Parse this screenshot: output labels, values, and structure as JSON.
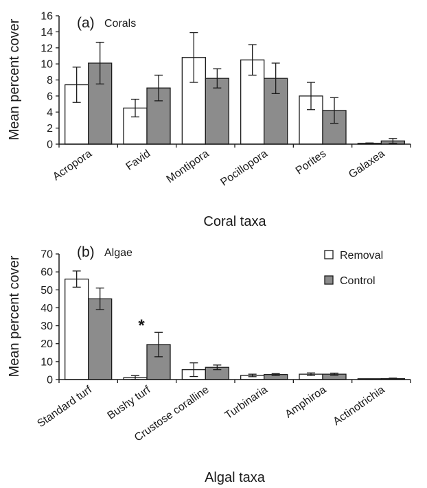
{
  "chart_data": [
    {
      "type": "bar",
      "panel_tag": "(a)",
      "panel_name": "Corals",
      "ylabel": "Mean percent cover",
      "xlabel": "Coral taxa",
      "ylim": [
        0,
        16
      ],
      "yticks": [
        0,
        2,
        4,
        6,
        8,
        10,
        12,
        14,
        16
      ],
      "categories": [
        "Acropora",
        "Favid",
        "Montipora",
        "Pocillopora",
        "Porites",
        "Galaxea"
      ],
      "series": [
        {
          "color": "#ffffff",
          "values": [
            7.4,
            4.5,
            10.8,
            10.5,
            6.0,
            0.1
          ],
          "errors": [
            2.2,
            1.1,
            3.1,
            1.9,
            1.7,
            0.05
          ]
        },
        {
          "color": "#8c8c8c",
          "values": [
            10.1,
            7.0,
            8.2,
            8.2,
            4.2,
            0.4
          ],
          "errors": [
            2.6,
            1.6,
            1.2,
            1.9,
            1.6,
            0.3
          ]
        }
      ],
      "legend": false,
      "grid": false
    },
    {
      "type": "bar",
      "panel_tag": "(b)",
      "panel_name": "Algae",
      "ylabel": "Mean percent cover",
      "xlabel": "Algal taxa",
      "ylim": [
        0,
        70
      ],
      "yticks": [
        0,
        10,
        20,
        30,
        40,
        50,
        60,
        70
      ],
      "categories": [
        "Standard turf",
        "Bushy turf",
        "Crustose coralline",
        "Turbinaria",
        "Amphiroa",
        "Actinotrichia"
      ],
      "series": [
        {
          "name": "Removal",
          "color": "#ffffff",
          "values": [
            56.0,
            1.0,
            5.5,
            2.3,
            3.0,
            0.1
          ],
          "errors": [
            4.5,
            1.2,
            3.8,
            0.7,
            0.7,
            0.05
          ]
        },
        {
          "name": "Control",
          "color": "#8c8c8c",
          "values": [
            45.0,
            19.5,
            6.8,
            2.8,
            3.0,
            0.5
          ],
          "errors": [
            6.0,
            6.8,
            1.3,
            0.5,
            0.6,
            0.3
          ]
        }
      ],
      "annotations": [
        {
          "category": "Bushy turf",
          "text": "*"
        }
      ],
      "legend": true,
      "legend_position": "top-right",
      "grid": false
    }
  ]
}
